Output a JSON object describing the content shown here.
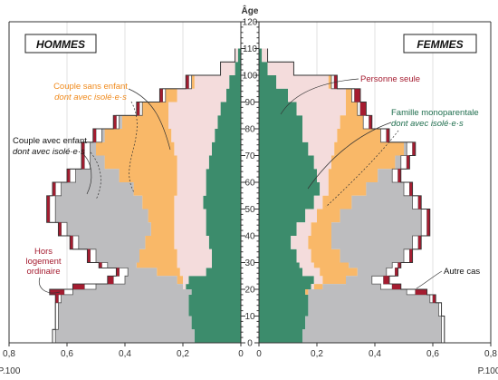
{
  "chart_data": {
    "type": "area",
    "subtype": "population-pyramid",
    "age_axis_label": "Âge",
    "x_unit": "P.100",
    "x_ticks_left": [
      "0,8",
      "0,6",
      "0,4",
      "0,2",
      "0"
    ],
    "x_ticks_right": [
      "0",
      "0,2",
      "0,4",
      "0,6",
      "0,8"
    ],
    "y_ticks": [
      "0",
      "10",
      "20",
      "30",
      "40",
      "50",
      "60",
      "70",
      "80",
      "90",
      "100",
      "110",
      "120"
    ],
    "xlim": [
      0,
      0.8
    ],
    "ylim": [
      0,
      120
    ],
    "panels": [
      {
        "side": "left",
        "title": "HOMMES"
      },
      {
        "side": "right",
        "title": "FEMMES"
      }
    ],
    "ages": [
      0,
      5,
      10,
      15,
      18,
      20,
      22,
      25,
      28,
      30,
      35,
      40,
      45,
      50,
      55,
      60,
      65,
      70,
      75,
      80,
      85,
      90,
      95,
      100,
      105
    ],
    "series": [
      {
        "name": "Famille monoparentale",
        "color": "#3c8c6c",
        "men": [
          0.16,
          0.17,
          0.18,
          0.18,
          0.17,
          0.19,
          0.18,
          0.12,
          0.1,
          0.1,
          0.11,
          0.12,
          0.12,
          0.13,
          0.12,
          0.12,
          0.11,
          0.1,
          0.09,
          0.08,
          0.07,
          0.05,
          0.04,
          0.02,
          0.01
        ],
        "women": [
          0.15,
          0.16,
          0.17,
          0.17,
          0.16,
          0.18,
          0.19,
          0.15,
          0.14,
          0.13,
          0.11,
          0.13,
          0.16,
          0.19,
          0.21,
          0.2,
          0.19,
          0.17,
          0.15,
          0.15,
          0.13,
          0.1,
          0.06,
          0.03,
          0.01
        ]
      },
      {
        "name": "Personne seule",
        "color": "#f4dcdc",
        "men": [
          0.0,
          0.0,
          0.0,
          0.0,
          0.0,
          0.01,
          0.02,
          0.09,
          0.12,
          0.12,
          0.12,
          0.11,
          0.11,
          0.1,
          0.1,
          0.1,
          0.11,
          0.13,
          0.15,
          0.17,
          0.18,
          0.17,
          0.12,
          0.05,
          0.01
        ],
        "women": [
          0.0,
          0.0,
          0.0,
          0.0,
          0.0,
          0.01,
          0.03,
          0.06,
          0.05,
          0.05,
          0.06,
          0.05,
          0.04,
          0.03,
          0.03,
          0.04,
          0.06,
          0.09,
          0.12,
          0.13,
          0.17,
          0.2,
          0.18,
          0.09,
          0.02
        ]
      },
      {
        "name": "Couple sans enfant",
        "color": "#f9b868",
        "men": [
          0.0,
          0.0,
          0.0,
          0.0,
          0.0,
          0.0,
          0.02,
          0.08,
          0.14,
          0.13,
          0.1,
          0.08,
          0.09,
          0.11,
          0.15,
          0.2,
          0.25,
          0.27,
          0.23,
          0.16,
          0.09,
          0.04,
          0.01,
          0.0,
          0.0
        ],
        "women": [
          0.0,
          0.0,
          0.0,
          0.0,
          0.01,
          0.03,
          0.08,
          0.13,
          0.12,
          0.1,
          0.08,
          0.07,
          0.08,
          0.1,
          0.13,
          0.17,
          0.22,
          0.24,
          0.15,
          0.08,
          0.04,
          0.02,
          0.01,
          0.0,
          0.0
        ]
      },
      {
        "name": "Couple avec enfant",
        "color": "#bdbdbf",
        "men": [
          0.48,
          0.46,
          0.45,
          0.44,
          0.41,
          0.3,
          0.18,
          0.1,
          0.1,
          0.15,
          0.23,
          0.29,
          0.32,
          0.3,
          0.25,
          0.15,
          0.05,
          0.02,
          0.01,
          0.01,
          0.0,
          0.0,
          0.0,
          0.0,
          0.0
        ],
        "women": [
          0.48,
          0.47,
          0.45,
          0.42,
          0.34,
          0.2,
          0.09,
          0.1,
          0.15,
          0.22,
          0.28,
          0.31,
          0.28,
          0.21,
          0.13,
          0.05,
          0.02,
          0.01,
          0.0,
          0.0,
          0.0,
          0.0,
          0.0,
          0.0,
          0.0
        ]
      },
      {
        "name": "Autre cas",
        "color": "#ffffff",
        "men": [
          0.01,
          0.01,
          0.01,
          0.01,
          0.03,
          0.04,
          0.04,
          0.03,
          0.02,
          0.02,
          0.02,
          0.02,
          0.02,
          0.02,
          0.02,
          0.02,
          0.02,
          0.02,
          0.02,
          0.01,
          0.01,
          0.01,
          0.01,
          0.0,
          0.0
        ],
        "women": [
          0.01,
          0.01,
          0.01,
          0.01,
          0.03,
          0.04,
          0.04,
          0.03,
          0.02,
          0.02,
          0.02,
          0.02,
          0.02,
          0.02,
          0.02,
          0.02,
          0.02,
          0.02,
          0.02,
          0.02,
          0.01,
          0.01,
          0.01,
          0.0,
          0.0
        ]
      },
      {
        "name": "Hors logement ordinaire",
        "color": "#a51c30",
        "men": [
          0.0,
          0.0,
          0.0,
          0.01,
          0.05,
          0.04,
          0.02,
          0.01,
          0.01,
          0.01,
          0.01,
          0.01,
          0.01,
          0.01,
          0.01,
          0.01,
          0.01,
          0.01,
          0.01,
          0.01,
          0.01,
          0.01,
          0.01,
          0.0,
          0.0
        ],
        "women": [
          0.0,
          0.0,
          0.0,
          0.01,
          0.04,
          0.03,
          0.02,
          0.01,
          0.01,
          0.01,
          0.01,
          0.01,
          0.01,
          0.01,
          0.01,
          0.01,
          0.01,
          0.01,
          0.01,
          0.01,
          0.02,
          0.02,
          0.01,
          0.0,
          0.0
        ]
      }
    ],
    "annotations": {
      "couple_sans_enfant": {
        "line1": "Couple sans enfant",
        "line2": "dont avec isolé·e·s"
      },
      "couple_avec_enfant": {
        "line1": "Couple avec enfant",
        "line2": "dont avec isolé·e·s"
      },
      "hors_logement": {
        "line1": "Hors",
        "line2": "logement",
        "line3": "ordinaire"
      },
      "personne_seule": {
        "line1": "Personne seule"
      },
      "famille_mono": {
        "line1": "Famille monoparentale",
        "line2": "dont avec isolé·e·s"
      },
      "autre_cas": {
        "line1": "Autre cas"
      }
    },
    "colors": {
      "annot_orange": "#f08a1c",
      "annot_red": "#a51c30",
      "annot_green": "#1f6e4e",
      "annot_black": "#111111"
    }
  }
}
